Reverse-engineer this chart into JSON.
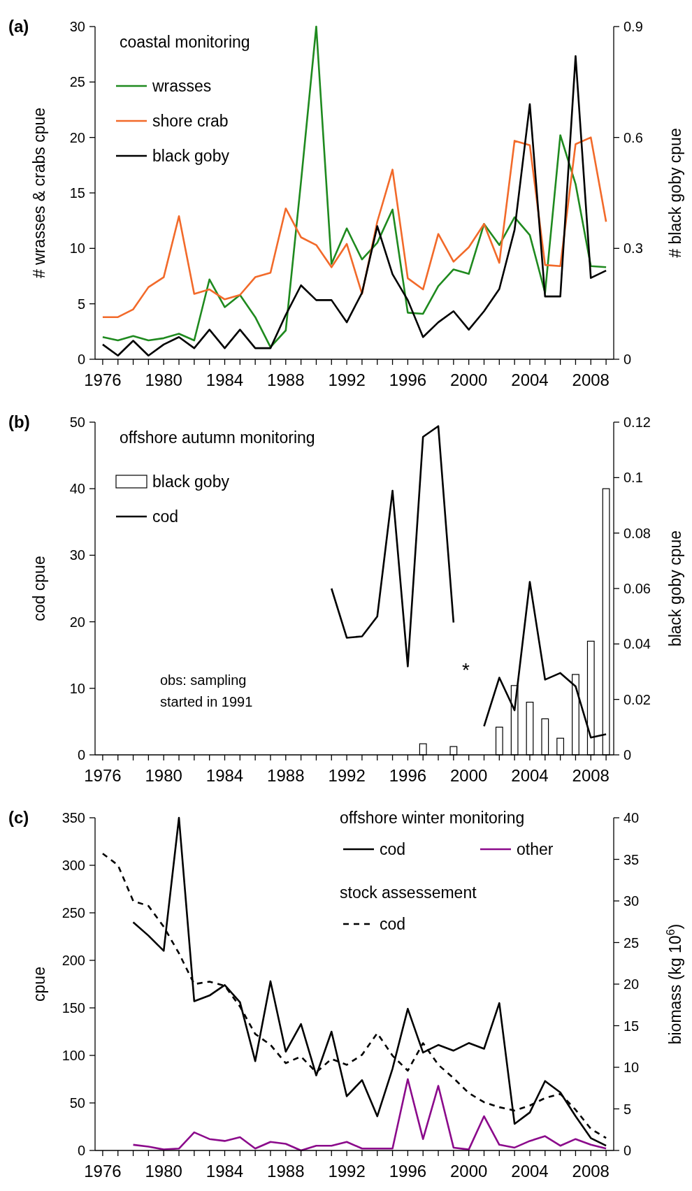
{
  "chart_data": [
    {
      "type": "line",
      "title": "(a)",
      "legend_title": "coastal monitoring",
      "legend": "top left",
      "ylabel": "# wrasses & crabs cpue",
      "y2label": "# black goby cpue",
      "x": [
        1976,
        1977,
        1978,
        1979,
        1980,
        1981,
        1982,
        1983,
        1984,
        1985,
        1986,
        1987,
        1988,
        1989,
        1990,
        1991,
        1992,
        1993,
        1994,
        1995,
        1996,
        1997,
        1998,
        1999,
        2000,
        2001,
        2002,
        2003,
        2004,
        2005,
        2006,
        2007,
        2008,
        2009
      ],
      "xlim": [
        1975.5,
        2009.5
      ],
      "xticks": [
        1976,
        {
          "value": 1977,
          "label": null
        },
        {
          "value": 1978,
          "label": null
        },
        {
          "value": 1979,
          "label": null
        },
        1980,
        {
          "value": 1981,
          "label": null
        },
        {
          "value": 1982,
          "label": null
        },
        {
          "value": 1983,
          "label": null
        },
        1984,
        {
          "value": 1985,
          "label": null
        },
        {
          "value": 1986,
          "label": null
        },
        {
          "value": 1987,
          "label": null
        },
        1988,
        {
          "value": 1989,
          "label": null
        },
        {
          "value": 1990,
          "label": null
        },
        {
          "value": 1991,
          "label": null
        },
        1992,
        {
          "value": 1993,
          "label": null
        },
        {
          "value": 1994,
          "label": null
        },
        {
          "value": 1995,
          "label": null
        },
        1996,
        {
          "value": 1997,
          "label": null
        },
        {
          "value": 1998,
          "label": null
        },
        {
          "value": 1999,
          "label": null
        },
        2000,
        {
          "value": 2001,
          "label": null
        },
        {
          "value": 2002,
          "label": null
        },
        {
          "value": 2003,
          "label": null
        },
        2004,
        {
          "value": 2005,
          "label": null
        },
        {
          "value": 2006,
          "label": null
        },
        {
          "value": 2007,
          "label": null
        },
        2008,
        {
          "value": 2009,
          "label": null
        }
      ],
      "ylim": [
        0,
        30
      ],
      "yticks": [
        0,
        5,
        10,
        15,
        20,
        25,
        30
      ],
      "y2lim": [
        0,
        0.9
      ],
      "y2ticks": [
        0,
        0.3,
        0.6,
        0.9
      ],
      "series": [
        {
          "name": "wrasses",
          "color": "#1f8a1f",
          "values": [
            2.0,
            1.7,
            2.1,
            1.7,
            1.9,
            2.3,
            1.7,
            7.2,
            4.7,
            5.8,
            3.8,
            1.1,
            2.6,
            16,
            30,
            8.6,
            11.8,
            9.0,
            10.5,
            13.5,
            4.2,
            4.1,
            6.6,
            8.1,
            7.7,
            12.2,
            10.3,
            12.8,
            11.2,
            6.0,
            20.2,
            15.8,
            8.4,
            8.3
          ]
        },
        {
          "name": "shore crab",
          "color": "#f26a2a",
          "values": [
            3.8,
            3.8,
            4.5,
            6.5,
            7.4,
            12.9,
            5.9,
            6.3,
            5.4,
            5.8,
            7.4,
            7.8,
            13.6,
            11.0,
            10.3,
            8.3,
            10.4,
            5.9,
            12.4,
            17.1,
            7.3,
            6.3,
            11.3,
            8.8,
            10.1,
            12.2,
            8.7,
            19.7,
            19.3,
            8.5,
            8.4,
            19.4,
            20.0,
            12.4
          ]
        },
        {
          "name": "black goby",
          "color": "#000000",
          "axis": "y2",
          "values": [
            0.04,
            0.01,
            0.05,
            0.01,
            0.04,
            0.06,
            0.03,
            0.08,
            0.03,
            0.08,
            0.03,
            0.03,
            0.12,
            0.2,
            0.16,
            0.16,
            0.1,
            0.18,
            0.36,
            0.23,
            0.16,
            0.06,
            0.1,
            0.13,
            0.08,
            0.13,
            0.19,
            0.35,
            0.69,
            0.17,
            0.17,
            0.82,
            0.22,
            0.24
          ]
        }
      ]
    },
    {
      "type": "line",
      "title": "(b)",
      "legend_title": "offshore autumn monitoring",
      "legend": "top left",
      "ylabel": "cod cpue",
      "y2label": "black goby cpue",
      "annotations": [
        "obs: sampling started in 1991",
        "*"
      ],
      "xlim": [
        1975.5,
        2009.5
      ],
      "xticks": [
        1976,
        {
          "value": 1977,
          "label": null
        },
        {
          "value": 1978,
          "label": null
        },
        {
          "value": 1979,
          "label": null
        },
        1980,
        {
          "value": 1981,
          "label": null
        },
        {
          "value": 1982,
          "label": null
        },
        {
          "value": 1983,
          "label": null
        },
        1984,
        {
          "value": 1985,
          "label": null
        },
        {
          "value": 1986,
          "label": null
        },
        {
          "value": 1987,
          "label": null
        },
        1988,
        {
          "value": 1989,
          "label": null
        },
        {
          "value": 1990,
          "label": null
        },
        {
          "value": 1991,
          "label": null
        },
        1992,
        {
          "value": 1993,
          "label": null
        },
        {
          "value": 1994,
          "label": null
        },
        {
          "value": 1995,
          "label": null
        },
        1996,
        {
          "value": 1997,
          "label": null
        },
        {
          "value": 1998,
          "label": null
        },
        {
          "value": 1999,
          "label": null
        },
        2000,
        {
          "value": 2001,
          "label": null
        },
        {
          "value": 2002,
          "label": null
        },
        {
          "value": 2003,
          "label": null
        },
        2004,
        {
          "value": 2005,
          "label": null
        },
        {
          "value": 2006,
          "label": null
        },
        {
          "value": 2007,
          "label": null
        },
        2008,
        {
          "value": 2009,
          "label": null
        }
      ],
      "ylim": [
        0,
        50
      ],
      "yticks": [
        0,
        10,
        20,
        30,
        40,
        50
      ],
      "y2lim": [
        0,
        0.12
      ],
      "y2ticks": [
        0,
        0.02,
        0.04,
        0.06,
        0.08,
        0.1,
        0.12
      ],
      "series": [
        {
          "name": "black goby",
          "type": "bar",
          "color": "#ffffff",
          "axis": "y2",
          "x": [
            1997,
            1999,
            2002,
            2003,
            2004,
            2005,
            2006,
            2007,
            2008,
            2009
          ],
          "values": [
            0.004,
            0.003,
            0.01,
            0.025,
            0.019,
            0.013,
            0.006,
            0.029,
            0.041,
            0.096
          ]
        },
        {
          "name": "cod",
          "color": "#000000",
          "x": [
            1991,
            1992,
            1993,
            1994,
            1995,
            1996,
            1997,
            1998,
            1999,
            2000,
            2001,
            2002,
            2003,
            2004,
            2005,
            2006,
            2007,
            2008,
            2009
          ],
          "values": [
            25.0,
            17.6,
            17.8,
            20.8,
            39.7,
            13.3,
            47.8,
            49.4,
            19.9,
            null,
            4.3,
            11.6,
            6.7,
            26.0,
            11.3,
            12.3,
            10.3,
            2.6,
            3.1
          ]
        }
      ]
    },
    {
      "type": "line",
      "title": "(c)",
      "legend_title": "offshore winter monitoring",
      "legend": "top right",
      "ylabel": "cpue",
      "y2label": "biomass (kg 10$^{6}$)",
      "annotations": [
        "stock assessement"
      ],
      "x": [
        1976,
        1977,
        1978,
        1979,
        1980,
        1981,
        1982,
        1983,
        1984,
        1985,
        1986,
        1987,
        1988,
        1989,
        1990,
        1991,
        1992,
        1993,
        1994,
        1995,
        1996,
        1997,
        1998,
        1999,
        2000,
        2001,
        2002,
        2003,
        2004,
        2005,
        2006,
        2007,
        2008,
        2009
      ],
      "xlim": [
        1975.5,
        2009.5
      ],
      "xticks": [
        1976,
        {
          "value": 1977,
          "label": null
        },
        {
          "value": 1978,
          "label": null
        },
        {
          "value": 1979,
          "label": null
        },
        1980,
        {
          "value": 1981,
          "label": null
        },
        {
          "value": 1982,
          "label": null
        },
        {
          "value": 1983,
          "label": null
        },
        1984,
        {
          "value": 1985,
          "label": null
        },
        {
          "value": 1986,
          "label": null
        },
        {
          "value": 1987,
          "label": null
        },
        1988,
        {
          "value": 1989,
          "label": null
        },
        {
          "value": 1990,
          "label": null
        },
        {
          "value": 1991,
          "label": null
        },
        1992,
        {
          "value": 1993,
          "label": null
        },
        {
          "value": 1994,
          "label": null
        },
        {
          "value": 1995,
          "label": null
        },
        1996,
        {
          "value": 1997,
          "label": null
        },
        {
          "value": 1998,
          "label": null
        },
        {
          "value": 1999,
          "label": null
        },
        2000,
        {
          "value": 2001,
          "label": null
        },
        {
          "value": 2002,
          "label": null
        },
        {
          "value": 2003,
          "label": null
        },
        2004,
        {
          "value": 2005,
          "label": null
        },
        {
          "value": 2006,
          "label": null
        },
        {
          "value": 2007,
          "label": null
        },
        2008,
        {
          "value": 2009,
          "label": null
        }
      ],
      "ylim": [
        0,
        350
      ],
      "yticks": [
        0,
        50,
        100,
        150,
        200,
        250,
        300,
        350
      ],
      "y2lim": [
        0,
        40
      ],
      "y2ticks": [
        0,
        5,
        10,
        15,
        20,
        25,
        30,
        35,
        40
      ],
      "series": [
        {
          "name": "cod",
          "color": "#000000",
          "values": [
            null,
            null,
            240,
            226,
            210,
            350,
            157,
            163,
            174,
            156,
            94,
            178,
            104,
            133,
            79,
            125,
            57,
            74,
            36,
            86,
            149,
            103,
            111,
            105,
            113,
            107,
            155,
            28,
            40,
            73,
            61,
            36,
            13,
            5
          ]
        },
        {
          "name": "other",
          "color": "#8b0a8b",
          "values": [
            null,
            null,
            6,
            4,
            1,
            2,
            19,
            12,
            10,
            14,
            2,
            9,
            7,
            0,
            5,
            5,
            9,
            2,
            2,
            2,
            75,
            12,
            68,
            3,
            1,
            36,
            6,
            3,
            10,
            15,
            5,
            12,
            6,
            2
          ]
        },
        {
          "name": "cod",
          "color": "#000000",
          "axis": "y2",
          "line_style": "dashed",
          "values": [
            35.7,
            34.3,
            30.0,
            29.4,
            26.9,
            23.7,
            20.0,
            20.3,
            19.8,
            17.3,
            14.0,
            12.7,
            10.5,
            11.3,
            9.4,
            11.0,
            10.3,
            11.5,
            14.1,
            11.4,
            9.6,
            12.9,
            10.3,
            8.7,
            6.9,
            5.8,
            5.2,
            4.8,
            5.4,
            6.3,
            6.8,
            4.9,
            2.6,
            1.5
          ]
        }
      ]
    }
  ]
}
